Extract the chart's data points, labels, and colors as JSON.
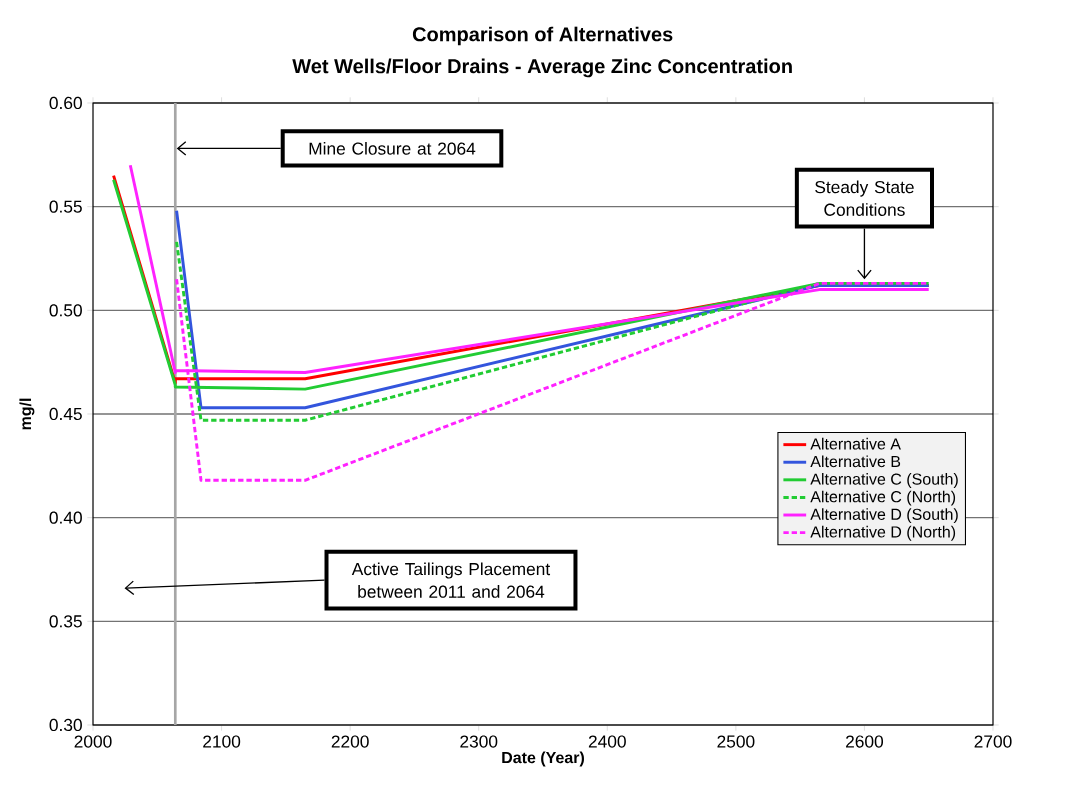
{
  "chart_data": {
    "type": "line",
    "title": "Comparison of Alternatives",
    "subtitle": "Wet Wells/Floor Drains - Average Zinc Concentration",
    "xlabel": "Date (Year)",
    "ylabel": "mg/l",
    "xlim": [
      2000,
      2700
    ],
    "xticks": [
      2000,
      2100,
      2200,
      2300,
      2400,
      2500,
      2600,
      2700
    ],
    "ylim": [
      0.3,
      0.6
    ],
    "yticks": [
      {
        "value": 0.3,
        "label": "0.30"
      },
      {
        "value": 0.35,
        "label": "0.35"
      },
      {
        "value": 0.4,
        "label": "0.40"
      },
      {
        "value": 0.45,
        "label": "0.45"
      },
      {
        "value": 0.5,
        "label": "0.50"
      },
      {
        "value": 0.55,
        "label": "0.55"
      },
      {
        "value": 0.6,
        "label": "0.60"
      }
    ],
    "grid": "y",
    "legend": "right",
    "marker": "none",
    "series": [
      {
        "name": "Alternative A",
        "color": "#ff0000",
        "line_style": "solid",
        "x": [
          2016,
          2064,
          2064,
          2165,
          2565,
          2650
        ],
        "values": [
          0.565,
          0.465,
          0.467,
          0.467,
          0.512,
          0.512
        ]
      },
      {
        "name": "Alternative B",
        "color": "#3355dd",
        "line_style": "solid",
        "x": [
          2065,
          2084,
          2165,
          2565,
          2650
        ],
        "values": [
          0.548,
          0.453,
          0.453,
          0.512,
          0.512
        ]
      },
      {
        "name": "Alternative C (South)",
        "color": "#22cc33",
        "line_style": "solid",
        "x": [
          2016,
          2064,
          2064,
          2165,
          2565,
          2650
        ],
        "values": [
          0.563,
          0.464,
          0.463,
          0.462,
          0.513,
          0.513
        ]
      },
      {
        "name": "Alternative C (North)",
        "color": "#22cc33",
        "line_style": "dashed",
        "x": [
          2065,
          2084,
          2165,
          2565,
          2650
        ],
        "values": [
          0.533,
          0.447,
          0.447,
          0.513,
          0.513
        ]
      },
      {
        "name": "Alternative D (South)",
        "color": "#ff22ff",
        "line_style": "solid",
        "x": [
          2029,
          2064,
          2064,
          2165,
          2565,
          2650
        ],
        "values": [
          0.57,
          0.47,
          0.471,
          0.47,
          0.51,
          0.51
        ]
      },
      {
        "name": "Alternative D (North)",
        "color": "#ff22ff",
        "line_style": "dashed",
        "x": [
          2065,
          2084,
          2165,
          2565,
          2650
        ],
        "values": [
          0.515,
          0.418,
          0.418,
          0.513,
          0.513
        ]
      }
    ],
    "ref_lines": [
      {
        "axis": "x",
        "value": 2064,
        "color": "#a6a6a6"
      }
    ],
    "annotations": [
      "Mine Closure at 2064",
      {
        "text": "Steady State Conditions",
        "x": 2600,
        "y": 0.515
      },
      "Active Tailings Placement between 2011 and 2064"
    ]
  }
}
